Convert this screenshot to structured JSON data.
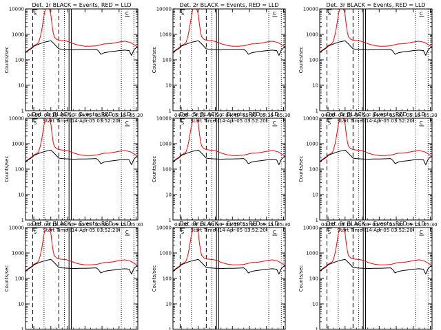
{
  "chart_data": {
    "type": "line",
    "panel_titles": [
      "Det. 1r  BLACK = Events, RED = LLD",
      "Det. 2r  BLACK = Events, RED = LLD",
      "Det. 3r  BLACK = Events, RED = LLD",
      "Det. 4r  BLACK = Events, RED = LLD",
      "Det. 5r  BLACK = Events, RED = LLD",
      "Det. 6r  BLACK = Events, RED = LLD",
      "Det. 7r  BLACK = Events, RED = LLD",
      "Det. 8r  BLACK = Events, RED = LLD",
      "Det. 9r  BLACK = Events, RED = LLD"
    ],
    "xlabel": "Start Time (14-Apr-05 03:52:20)",
    "ylabel": "Counts/sec",
    "x_ticks": [
      "04:00",
      "04:15",
      "04:30",
      "04:45",
      "05:00",
      "05:15",
      "05:30"
    ],
    "x_tick_minutes": [
      0,
      15,
      30,
      45,
      60,
      75,
      90
    ],
    "xlim_minutes": [
      -7.3,
      91.5
    ],
    "y_scale": "log",
    "ylim": [
      1,
      10000
    ],
    "y_ticks": [
      "1",
      "10",
      "100",
      "1000",
      "10000"
    ],
    "y_tick_values": [
      1,
      10,
      100,
      1000,
      10000
    ],
    "markers": {
      "dashed_minutes": [
        -1,
        22
      ],
      "dotted_minutes": [
        9,
        27,
        77,
        88
      ],
      "solid_minutes": [
        31,
        33
      ],
      "flags": [
        "S",
        "C"
      ]
    },
    "series": [
      {
        "color": "#ff0000",
        "x": [
          -7.3,
          -5,
          -3,
          -1,
          0,
          2,
          4,
          5,
          6,
          7,
          8,
          9,
          10,
          10.5,
          11,
          11.5,
          12,
          13,
          14,
          15,
          16,
          17,
          18,
          20,
          22,
          25,
          28,
          31,
          35,
          40,
          45,
          50,
          55,
          58,
          60,
          62,
          66,
          70,
          75,
          80,
          85,
          91
        ],
        "y": [
          200,
          240,
          280,
          320,
          360,
          400,
          460,
          620,
          900,
          1500,
          2800,
          5500,
          9000,
          12000,
          12000,
          12000,
          12000,
          11000,
          9000,
          6000,
          2500,
          1200,
          800,
          640,
          590,
          560,
          550,
          510,
          430,
          370,
          340,
          340,
          355,
          380,
          405,
          420,
          430,
          450,
          500,
          540,
          480,
          330
        ]
      },
      {
        "color": "#000000",
        "x": [
          -7.3,
          -5,
          -3,
          -1,
          0,
          3,
          6,
          10,
          15,
          18,
          22,
          25,
          28,
          31,
          35,
          40,
          45,
          50,
          55,
          57,
          59,
          62,
          66,
          70,
          75,
          80,
          84,
          85,
          86,
          88,
          91
        ],
        "y": [
          190,
          230,
          260,
          300,
          340,
          390,
          440,
          500,
          560,
          420,
          270,
          260,
          255,
          250,
          245,
          250,
          250,
          255,
          260,
          220,
          165,
          190,
          205,
          215,
          230,
          240,
          230,
          180,
          150,
          240,
          330
        ]
      }
    ]
  }
}
